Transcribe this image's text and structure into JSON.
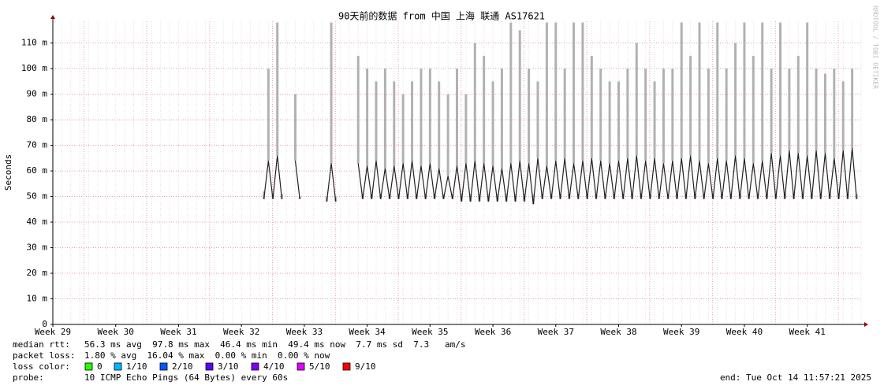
{
  "chart_data": {
    "type": "line",
    "title": "90天前的数据 from 中国 上海 联通 AS17621",
    "ylabel": "Seconds",
    "watermark": "RRDTOOL / TOBI OETIKER",
    "xlim": [
      0,
      90
    ],
    "ylim": [
      0,
      0.1185
    ],
    "grid": true,
    "xticks": [
      {
        "value": 0,
        "label": "Week 29"
      },
      {
        "value": 7,
        "label": "Week 30"
      },
      {
        "value": 14,
        "label": "Week 31"
      },
      {
        "value": 21,
        "label": "Week 32"
      },
      {
        "value": 28,
        "label": "Week 33"
      },
      {
        "value": 35,
        "label": "Week 34"
      },
      {
        "value": 42,
        "label": "Week 35"
      },
      {
        "value": 49,
        "label": "Week 36"
      },
      {
        "value": 56,
        "label": "Week 37"
      },
      {
        "value": 63,
        "label": "Week 38"
      },
      {
        "value": 70,
        "label": "Week 39"
      },
      {
        "value": 77,
        "label": "Week 40"
      },
      {
        "value": 84,
        "label": "Week 41"
      }
    ],
    "yticks": [
      0,
      {
        "value": 0.01,
        "label": "10 m"
      },
      {
        "value": 0.02,
        "label": "20 m"
      },
      {
        "value": 0.03,
        "label": "30 m"
      },
      {
        "value": 0.04,
        "label": "40 m"
      },
      {
        "value": 0.05,
        "label": "50 m"
      },
      {
        "value": 0.06,
        "label": "60 m"
      },
      {
        "value": 0.07,
        "label": "70 m"
      },
      {
        "value": 0.08,
        "label": "80 m"
      },
      {
        "value": 0.09,
        "label": "90 m"
      },
      {
        "value": 0.1,
        "label": "100 m"
      },
      {
        "value": 0.11,
        "label": "110 m"
      }
    ],
    "x": [
      23.5,
      24,
      24.5,
      25,
      25.5,
      26,
      26.5,
      27,
      27.5,
      28,
      28.5,
      29,
      29.5,
      30,
      30.5,
      31,
      31.5,
      32,
      32.5,
      33,
      33.5,
      34,
      34.5,
      35,
      35.5,
      36,
      36.5,
      37,
      37.5,
      38,
      38.5,
      39,
      39.5,
      40,
      40.5,
      41,
      41.5,
      42,
      42.5,
      43,
      43.5,
      44,
      44.5,
      45,
      45.5,
      46,
      46.5,
      47,
      47.5,
      48,
      48.5,
      49,
      49.5,
      50,
      50.5,
      51,
      51.5,
      52,
      52.5,
      53,
      53.5,
      54,
      54.5,
      55,
      55.5,
      56,
      56.5,
      57,
      57.5,
      58,
      58.5,
      59,
      59.5,
      60,
      60.5,
      61,
      61.5,
      62,
      62.5,
      63,
      63.5,
      64,
      64.5,
      65,
      65.5,
      66,
      66.5,
      67,
      67.5,
      68,
      68.5,
      69,
      69.5,
      70,
      70.5,
      71,
      71.5,
      72,
      72.5,
      73,
      73.5,
      74,
      74.5,
      75,
      75.5,
      76,
      76.5,
      77,
      77.5,
      78,
      78.5,
      79,
      79.5,
      80,
      80.5,
      81,
      81.5,
      82,
      82.5,
      83,
      83.5,
      84,
      84.5,
      85,
      85.5,
      86,
      86.5,
      87,
      87.5,
      88,
      88.5,
      89,
      89.5
    ],
    "series": [
      {
        "color": "#a0a0a0",
        "values": [
          0.052,
          0.1,
          0.051,
          0.118,
          0.051,
          null,
          null,
          0.09,
          0.05,
          null,
          null,
          null,
          null,
          null,
          0.05,
          0.118,
          0.05,
          null,
          null,
          null,
          null,
          0.105,
          0.051,
          0.1,
          0.051,
          0.095,
          0.051,
          0.1,
          0.051,
          0.095,
          0.051,
          0.09,
          0.051,
          0.095,
          0.051,
          0.1,
          0.051,
          0.1,
          0.051,
          0.095,
          0.051,
          0.09,
          0.051,
          0.1,
          0.051,
          0.09,
          0.051,
          0.11,
          0.051,
          0.105,
          0.051,
          0.095,
          0.051,
          0.1,
          0.051,
          0.118,
          0.051,
          0.115,
          0.051,
          0.1,
          0.051,
          0.095,
          0.051,
          0.118,
          0.051,
          0.118,
          0.051,
          0.1,
          0.051,
          0.118,
          0.051,
          0.118,
          0.051,
          0.105,
          0.051,
          0.1,
          0.051,
          0.095,
          0.051,
          0.095,
          0.051,
          0.1,
          0.051,
          0.11,
          0.051,
          0.1,
          0.051,
          0.095,
          0.051,
          0.1,
          0.051,
          0.1,
          0.051,
          0.118,
          0.051,
          0.105,
          0.051,
          0.118,
          0.051,
          0.1,
          0.051,
          0.118,
          0.051,
          0.1,
          0.051,
          0.11,
          0.051,
          0.118,
          0.051,
          0.105,
          0.051,
          0.118,
          0.051,
          0.1,
          0.051,
          0.118,
          0.051,
          0.1,
          0.051,
          0.105,
          0.051,
          0.118,
          0.051,
          0.1,
          0.051,
          0.098,
          0.051,
          0.1,
          0.051,
          0.095,
          0.051,
          0.1,
          0.051
        ]
      },
      {
        "color": "#202020",
        "values": [
          0.049,
          0.064,
          0.049,
          0.066,
          0.049,
          null,
          null,
          0.064,
          0.049,
          null,
          null,
          null,
          null,
          null,
          0.048,
          0.063,
          0.048,
          null,
          null,
          null,
          null,
          0.063,
          0.049,
          0.062,
          0.049,
          0.064,
          0.049,
          0.061,
          0.049,
          0.062,
          0.049,
          0.063,
          0.049,
          0.064,
          0.049,
          0.062,
          0.049,
          0.063,
          0.049,
          0.061,
          0.049,
          0.058,
          0.049,
          0.062,
          0.048,
          0.063,
          0.048,
          0.064,
          0.048,
          0.063,
          0.048,
          0.062,
          0.048,
          0.061,
          0.048,
          0.063,
          0.048,
          0.064,
          0.048,
          0.063,
          0.047,
          0.065,
          0.049,
          0.062,
          0.049,
          0.064,
          0.049,
          0.065,
          0.049,
          0.063,
          0.049,
          0.064,
          0.049,
          0.065,
          0.049,
          0.064,
          0.049,
          0.063,
          0.049,
          0.064,
          0.049,
          0.065,
          0.049,
          0.066,
          0.049,
          0.064,
          0.049,
          0.065,
          0.049,
          0.063,
          0.049,
          0.064,
          0.049,
          0.065,
          0.049,
          0.066,
          0.049,
          0.064,
          0.049,
          0.063,
          0.049,
          0.065,
          0.049,
          0.064,
          0.049,
          0.066,
          0.049,
          0.065,
          0.049,
          0.063,
          0.049,
          0.064,
          0.049,
          0.067,
          0.049,
          0.066,
          0.049,
          0.068,
          0.049,
          0.067,
          0.049,
          0.066,
          0.049,
          0.068,
          0.049,
          0.067,
          0.049,
          0.065,
          0.049,
          0.068,
          0.049,
          0.069,
          0.049
        ]
      }
    ]
  },
  "stats": [
    {
      "label": "median rtt:",
      "text": "56.3 ms avg  97.8 ms max  46.4 ms min  49.4 ms now  7.7 ms sd  7.3   am/s"
    },
    {
      "label": "packet loss:",
      "text": "1.80 % avg  16.04 % max  0.00 % min  0.00 % now"
    }
  ],
  "loss_legend": {
    "label": "loss color:",
    "items": [
      {
        "color": "#26ff00",
        "label": "0"
      },
      {
        "color": "#00b8ff",
        "label": "1/10"
      },
      {
        "color": "#0059ff",
        "label": "2/10"
      },
      {
        "color": "#5e00ff",
        "label": "3/10"
      },
      {
        "color": "#7e00ff",
        "label": "4/10"
      },
      {
        "color": "#dd00ff",
        "label": "5/10"
      },
      {
        "color": "#ff0000",
        "label": "9/10"
      }
    ]
  },
  "probe": {
    "label": "probe:",
    "text": "10 ICMP Echo Pings (64 Bytes) every 60s"
  },
  "end": "end: Tue Oct 14 11:57:21 2025"
}
